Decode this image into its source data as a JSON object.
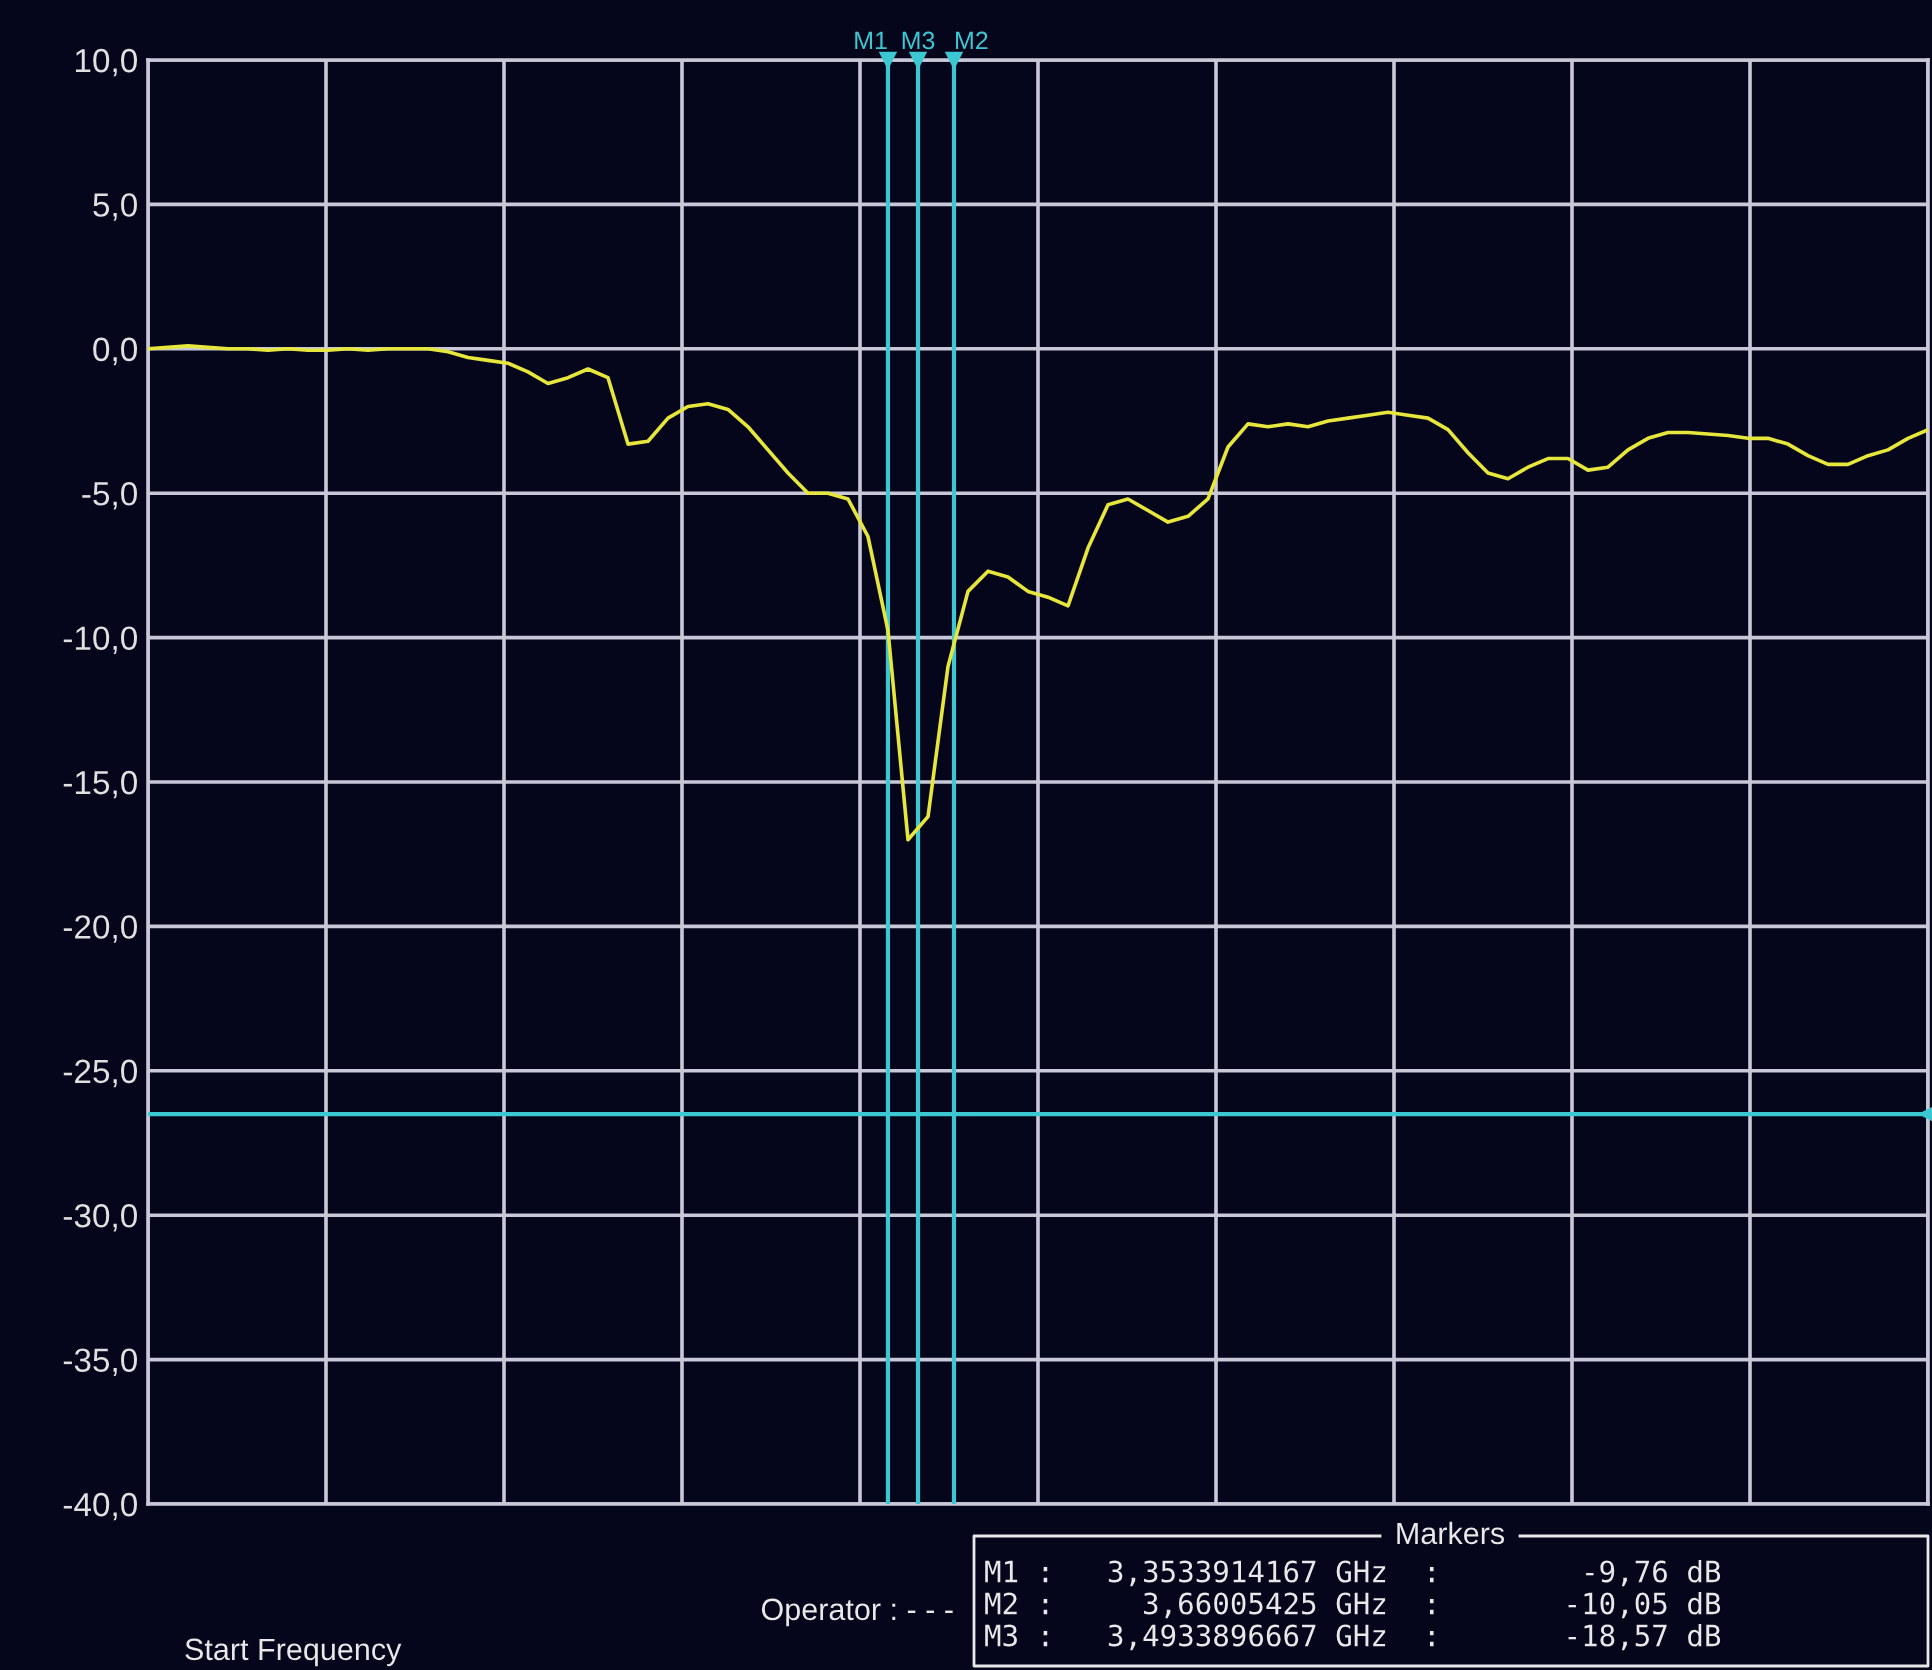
{
  "chart_data": {
    "type": "line",
    "categories": [
      null,
      null,
      null,
      null,
      null,
      null,
      null,
      null,
      null,
      null,
      null,
      null,
      null,
      null,
      null,
      null,
      null,
      null,
      null,
      null,
      null,
      null,
      null,
      null,
      null,
      null,
      null,
      null,
      null,
      null,
      null,
      null,
      null,
      null,
      null,
      null,
      null,
      null,
      null,
      null,
      null,
      null,
      null,
      null,
      null,
      null,
      null,
      null,
      null,
      null,
      null,
      null,
      null,
      null,
      null,
      null,
      null,
      null,
      null,
      null,
      null,
      null,
      null,
      null,
      null,
      null,
      null,
      null,
      null,
      null,
      null,
      null,
      null,
      null,
      null,
      null,
      null,
      null,
      null,
      null,
      null,
      null,
      null,
      null,
      null,
      null,
      null,
      null,
      null,
      null
    ],
    "ylim": [
      -40,
      10
    ],
    "yticks": [
      {
        "value": 10,
        "label": "10,0"
      },
      {
        "value": 5,
        "label": "5,0"
      },
      {
        "value": 0,
        "label": "0,0"
      },
      {
        "value": -5,
        "label": "-5,0"
      },
      {
        "value": -10,
        "label": "-10,0"
      },
      {
        "value": -15,
        "label": "-15,0"
      },
      {
        "value": -20,
        "label": "-20,0"
      },
      {
        "value": -25,
        "label": "-25,0"
      },
      {
        "value": -30,
        "label": "-30,0"
      },
      {
        "value": -35,
        "label": "-35,0"
      },
      {
        "value": -40,
        "label": "-40,0"
      }
    ],
    "grid": true,
    "series": [
      {
        "color": "#e6e63c",
        "values": [
          0,
          0.05,
          0.1,
          0.05,
          0,
          0,
          -0.05,
          0,
          -0.05,
          -0.05,
          0,
          -0.05,
          0,
          0,
          0,
          -0.1,
          -0.3,
          -0.4,
          -0.5,
          -0.8,
          -1.2,
          -1.0,
          -0.7,
          -1.0,
          -3.3,
          -3.2,
          -2.4,
          -2.0,
          -1.9,
          -2.1,
          -2.7,
          -3.5,
          -4.3,
          -5.0,
          -5.0,
          -5.2,
          -6.5,
          -9.76,
          -17.0,
          -16.2,
          -11.0,
          -8.4,
          -7.7,
          -7.9,
          -8.4,
          -8.6,
          -8.9,
          -6.9,
          -5.4,
          -5.2,
          -5.6,
          -6.0,
          -5.8,
          -5.2,
          -3.4,
          -2.6,
          -2.7,
          -2.6,
          -2.7,
          -2.5,
          -2.4,
          -2.3,
          -2.2,
          -2.3,
          -2.4,
          -2.8,
          -3.6,
          -4.3,
          -4.5,
          -4.1,
          -3.8,
          -3.8,
          -4.2,
          -4.1,
          -3.5,
          -3.1,
          -2.9,
          -2.9,
          -2.95,
          -3.0,
          -3.1,
          -3.1,
          -3.3,
          -3.7,
          -4.0,
          -4.0,
          -3.7,
          -3.5,
          -3.1,
          -2.8
        ]
      }
    ],
    "ref_lines": [
      {
        "axis": "y",
        "value": -26.5,
        "color": "#3cc8d2"
      }
    ],
    "annotations": [
      "Start Frequency",
      "Operator : - - -",
      "Markers",
      "M1",
      "M3",
      "M2",
      "M1 :   3,3533914167 GHz  :        -9,76 dB",
      "M2 :     3,66005425 GHz  :       -10,05 dB",
      "M3 :   3,4933896667 GHz  :       -18,57 dB"
    ]
  }
}
